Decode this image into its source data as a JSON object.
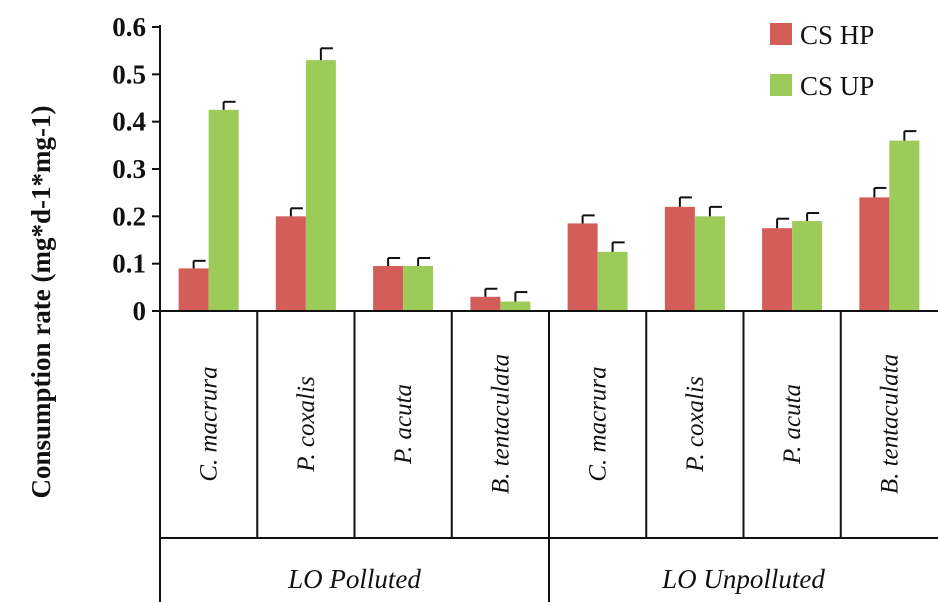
{
  "chart_data": {
    "type": "bar",
    "ylabel": "Consumption rate (mg*d-1*mg-1)",
    "ylim": [
      0,
      0.6
    ],
    "yticks": [
      "0",
      "0.1",
      "0.2",
      "0.3",
      "0.4",
      "0.5",
      "0.6"
    ],
    "groups": [
      {
        "label": "LO Polluted",
        "categories": [
          "C. macrura",
          "P. coxalis",
          "P. acuta",
          "B. tentaculata"
        ]
      },
      {
        "label": "LO Unpolluted",
        "categories": [
          "C. macrura",
          "P. coxalis",
          "P. acuta",
          "B. tentaculata"
        ]
      }
    ],
    "series": [
      {
        "name": "CS HP",
        "color": "#d35d58",
        "values": [
          0.09,
          0.2,
          0.095,
          0.03,
          0.185,
          0.22,
          0.175,
          0.24
        ],
        "errors": [
          0.016,
          0.017,
          0.017,
          0.017,
          0.017,
          0.02,
          0.02,
          0.02
        ]
      },
      {
        "name": "CS UP",
        "color": "#9ccb5a",
        "values": [
          0.425,
          0.53,
          0.095,
          0.02,
          0.125,
          0.2,
          0.19,
          0.36
        ],
        "errors": [
          0.017,
          0.025,
          0.017,
          0.02,
          0.02,
          0.02,
          0.017,
          0.02
        ]
      }
    ],
    "legend": "top-right",
    "grid": false
  }
}
